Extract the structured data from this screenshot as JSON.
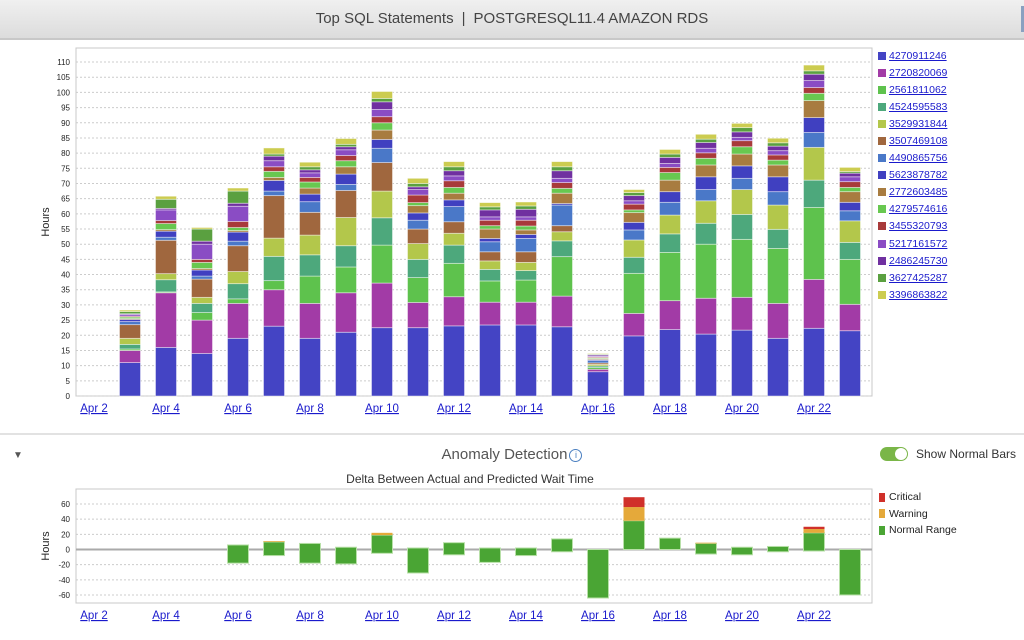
{
  "header": {
    "title": "Top SQL Statements",
    "separator": "|",
    "subtitle": "POSTGRESQL11.4 AMAZON RDS"
  },
  "anomaly": {
    "section_title": "Anomaly Detection",
    "info_icon": "i",
    "toggle_label": "Show Normal Bars",
    "toggle_on": true,
    "collapse_icon": "▼"
  },
  "chart_data": [
    {
      "type": "bar",
      "stacked": true,
      "title": "",
      "xlabel": "",
      "ylabel": "Hours",
      "ylim": [
        0,
        113
      ],
      "grid": true,
      "legend": "right",
      "yticks": [
        0,
        5,
        10,
        15,
        20,
        25,
        30,
        35,
        40,
        45,
        50,
        55,
        60,
        65,
        70,
        75,
        80,
        85,
        90,
        95,
        100,
        105,
        110
      ],
      "categories": [
        "Apr 2",
        "Apr 3",
        "Apr 4",
        "Apr 5",
        "Apr 6",
        "Apr 7",
        "Apr 8",
        "Apr 9",
        "Apr 10",
        "Apr 11",
        "Apr 12",
        "Apr 13",
        "Apr 14",
        "Apr 15",
        "Apr 16",
        "Apr 17",
        "Apr 18",
        "Apr 19",
        "Apr 20",
        "Apr 21",
        "Apr 22",
        "Apr 23"
      ],
      "tick_labels": [
        "Apr 2",
        "Apr 4",
        "Apr 6",
        "Apr 8",
        "Apr 10",
        "Apr 12",
        "Apr 14",
        "Apr 16",
        "Apr 18",
        "Apr 20",
        "Apr 22"
      ],
      "series": [
        {
          "name": "4270911246",
          "color": "#4444c4",
          "values": [
            0,
            11,
            16,
            14,
            19,
            23,
            19,
            21,
            22.5,
            22.5,
            23.1,
            23.4,
            23.4,
            22.8,
            8,
            19.8,
            21.9,
            20.4,
            21.7,
            19,
            22.3,
            21.5
          ]
        },
        {
          "name": "2720820069",
          "color": "#a23ba6",
          "values": [
            0,
            4,
            18,
            11,
            11.5,
            12,
            11.5,
            13,
            14.7,
            8.3,
            9.6,
            7.5,
            7.5,
            10.1,
            0.8,
            7.4,
            9.5,
            11.8,
            10.8,
            11.5,
            16.1,
            8.7
          ]
        },
        {
          "name": "2561811062",
          "color": "#5ec24d",
          "values": [
            0,
            0.5,
            0.3,
            2.5,
            1.5,
            3,
            9,
            8.5,
            12.5,
            8.2,
            11,
            7,
            7.3,
            13,
            0.6,
            13.2,
            15.9,
            17.8,
            19.1,
            18.1,
            23.7,
            14.8
          ]
        },
        {
          "name": "4524595583",
          "color": "#4da87c",
          "values": [
            0,
            1.5,
            4,
            3,
            5,
            8,
            7,
            7,
            9,
            6,
            6,
            3.8,
            3.1,
            5.2,
            0.5,
            5.3,
            6.1,
            6.9,
            8.2,
            6.3,
            9,
            5.6
          ]
        },
        {
          "name": "3529931844",
          "color": "#b3c74b",
          "values": [
            0,
            2,
            2,
            2,
            4,
            6,
            6.5,
            9.3,
            8.8,
            5.2,
            3.9,
            2.8,
            2.7,
            3,
            0.5,
            5.7,
            6.2,
            7.4,
            8.2,
            8,
            10.8,
            7.1
          ]
        },
        {
          "name": "3507469108",
          "color": "#a0673e",
          "values": [
            0,
            4.5,
            11,
            6,
            8.5,
            14,
            7.5,
            8.9,
            9.4,
            4.8,
            3.8,
            3,
            3.5,
            2,
            0.5,
            0,
            0,
            0,
            0,
            0,
            0,
            0
          ]
        },
        {
          "name": "4490865756",
          "color": "#4a78c8",
          "values": [
            0,
            1,
            1,
            1,
            1.5,
            1.5,
            3.5,
            2,
            4.7,
            2.9,
            5,
            3.3,
            4.4,
            6.8,
            0.8,
            3.3,
            4.2,
            3.7,
            3.7,
            4.4,
            4.9,
            3.3
          ]
        },
        {
          "name": "5623878782",
          "color": "#4040c0",
          "values": [
            0,
            0.7,
            2,
            2,
            3,
            3.5,
            2.5,
            3.4,
            2.9,
            2.4,
            2.2,
            1.1,
            1.3,
            0.5,
            0.3,
            2.5,
            3.5,
            4.2,
            4.1,
            4.9,
            4.9,
            2.8
          ]
        },
        {
          "name": "2772603485",
          "color": "#a87c40",
          "values": [
            0,
            0.3,
            0.5,
            0.5,
            0.5,
            1,
            2,
            2.4,
            3.1,
            2.4,
            2.2,
            3.1,
            1.5,
            3.4,
            0.3,
            3.2,
            3.8,
            3.9,
            3.9,
            3.9,
            5.6,
            3.5
          ]
        },
        {
          "name": "4279574616",
          "color": "#68c850",
          "values": [
            0,
            0.5,
            2,
            2,
            1,
            2,
            2,
            2,
            2.4,
            1,
            1.9,
            1.1,
            1.3,
            1.6,
            0.3,
            0.9,
            2.5,
            2.2,
            2.4,
            1.6,
            2.4,
            1.4
          ]
        },
        {
          "name": "3455320793",
          "color": "#a83a3a",
          "values": [
            0,
            0.3,
            1,
            1,
            2,
            1.5,
            1.5,
            1.7,
            2,
            2.5,
            2.2,
            1.8,
            1.9,
            1.9,
            0.3,
            1.9,
            1.7,
            1.8,
            2,
            1.7,
            1.9,
            1.9
          ]
        },
        {
          "name": "5217161572",
          "color": "#8a4cc4",
          "values": [
            0,
            0.5,
            3.5,
            5,
            5,
            2,
            1.5,
            1.9,
            2.4,
            1.8,
            1.6,
            1.1,
            1.1,
            1.4,
            0.3,
            1.1,
            1.3,
            1.5,
            1.1,
            1.4,
            2.3,
            1.6
          ]
        },
        {
          "name": "2486245730",
          "color": "#7030a0",
          "values": [
            0,
            0.3,
            0.5,
            1,
            1,
            1.5,
            1,
            1,
            2.5,
            0.9,
            1.7,
            2.3,
            2.5,
            2.5,
            0.4,
            1.7,
            2,
            1.9,
            1.8,
            1.5,
            2.1,
            1.2
          ]
        },
        {
          "name": "3627425287",
          "color": "#5aa040",
          "values": [
            0,
            0.7,
            3,
            4,
            4,
            0.7,
            1,
            0.8,
            1.1,
            1.1,
            1.3,
            1,
            1.1,
            1.3,
            0.2,
            1,
            1.1,
            1.1,
            1.4,
            1.1,
            1.1,
            0.5
          ]
        },
        {
          "name": "3396863822",
          "color": "#cccc50",
          "values": [
            0,
            0.5,
            1,
            0.5,
            1,
            2,
            1.5,
            1.9,
            2.3,
            1.7,
            1.7,
            1.4,
            1.3,
            1.7,
            0.2,
            1,
            1.5,
            1.6,
            1.4,
            1.5,
            1.9,
            1.4
          ]
        }
      ]
    },
    {
      "type": "bar",
      "stacked": true,
      "title": "Delta Between Actual and Predicted Wait Time",
      "xlabel": "",
      "ylabel": "Hours",
      "ylim": [
        -72,
        72
      ],
      "grid": true,
      "legend": "right",
      "yticks": [
        60,
        40,
        20,
        0,
        -20,
        -40,
        -60
      ],
      "categories": [
        "Apr 2",
        "Apr 3",
        "Apr 4",
        "Apr 5",
        "Apr 6",
        "Apr 7",
        "Apr 8",
        "Apr 9",
        "Apr 10",
        "Apr 11",
        "Apr 12",
        "Apr 13",
        "Apr 14",
        "Apr 15",
        "Apr 16",
        "Apr 17",
        "Apr 18",
        "Apr 19",
        "Apr 20",
        "Apr 21",
        "Apr 22",
        "Apr 23"
      ],
      "tick_labels": [
        "Apr 2",
        "Apr 4",
        "Apr 6",
        "Apr 8",
        "Apr 10",
        "Apr 12",
        "Apr 14",
        "Apr 16",
        "Apr 18",
        "Apr 20",
        "Apr 22"
      ],
      "series": [
        {
          "name": "Normal Range",
          "color": "#4aa534",
          "low": [
            null,
            null,
            null,
            null,
            -18,
            -8,
            -18,
            -19,
            -5,
            -31,
            -7,
            -17,
            -8,
            -3,
            -64,
            0,
            0,
            -6,
            -7,
            -3,
            -2,
            -60
          ],
          "high": [
            null,
            null,
            null,
            null,
            6,
            10,
            8,
            3,
            19,
            2,
            9,
            2,
            2,
            14,
            0,
            38,
            15,
            8,
            3,
            4,
            22,
            0
          ]
        },
        {
          "name": "Warning",
          "color": "#e5a93a",
          "values": [
            null,
            null,
            null,
            null,
            0,
            1,
            0,
            0,
            3,
            0,
            0,
            0,
            0,
            0,
            0,
            18,
            0,
            1,
            0,
            0,
            5,
            0
          ]
        },
        {
          "name": "Critical",
          "color": "#d0302a",
          "values": [
            null,
            null,
            null,
            null,
            0,
            0,
            0,
            0,
            0,
            0,
            0,
            0,
            0,
            0,
            0,
            13,
            0,
            0,
            0,
            0,
            3,
            0
          ]
        }
      ],
      "legend_order": [
        "Critical",
        "Warning",
        "Normal Range"
      ]
    }
  ]
}
